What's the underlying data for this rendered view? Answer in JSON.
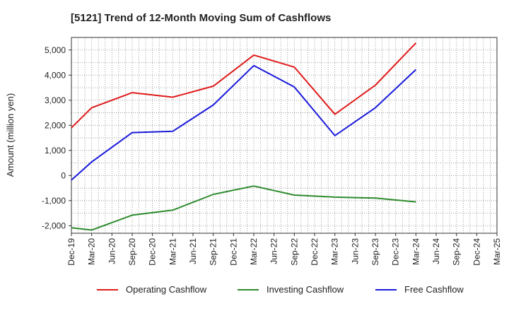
{
  "chart_data": {
    "type": "line",
    "title": "[5121]  Trend of 12-Month Moving Sum of Cashflows",
    "xlabel": "",
    "ylabel": "Amount (million yen)",
    "ylim": [
      -2300,
      5500
    ],
    "yticks": [
      5000,
      4000,
      3000,
      2000,
      1000,
      0,
      -1000,
      -2000
    ],
    "ytick_labels": [
      "5,000",
      "4,000",
      "3,000",
      "2,000",
      "1,000",
      "0",
      "-1,000",
      "-2,000"
    ],
    "categories": [
      "Dec-19",
      "Mar-20",
      "Jun-20",
      "Sep-20",
      "Dec-20",
      "Mar-21",
      "Jun-21",
      "Sep-21",
      "Dec-21",
      "Mar-22",
      "Jun-22",
      "Sep-22",
      "Dec-22",
      "Mar-23",
      "Jun-23",
      "Sep-23",
      "Dec-23",
      "Mar-24",
      "Jun-24",
      "Sep-24",
      "Dec-24",
      "Mar-25"
    ],
    "grid": true,
    "legend_position": "bottom",
    "series": [
      {
        "name": "Operating Cashflow",
        "color": "#e01b1b",
        "values": [
          1900,
          2700,
          null,
          3300,
          null,
          3120,
          null,
          3560,
          null,
          4800,
          null,
          4320,
          null,
          2440,
          null,
          3600,
          null,
          5280,
          null,
          null,
          null,
          null
        ]
      },
      {
        "name": "Investing Cashflow",
        "color": "#2e8b2e",
        "values": [
          -2080,
          -2170,
          null,
          -1580,
          null,
          -1380,
          null,
          -750,
          null,
          -420,
          null,
          -780,
          null,
          -860,
          null,
          -900,
          null,
          -1050,
          null,
          null,
          null,
          null
        ]
      },
      {
        "name": "Free Cashflow",
        "color": "#1a1adb",
        "values": [
          -180,
          540,
          null,
          1710,
          null,
          1760,
          null,
          2810,
          null,
          4380,
          null,
          3530,
          null,
          1590,
          null,
          2700,
          null,
          4220,
          null,
          null,
          null,
          null
        ]
      }
    ]
  }
}
